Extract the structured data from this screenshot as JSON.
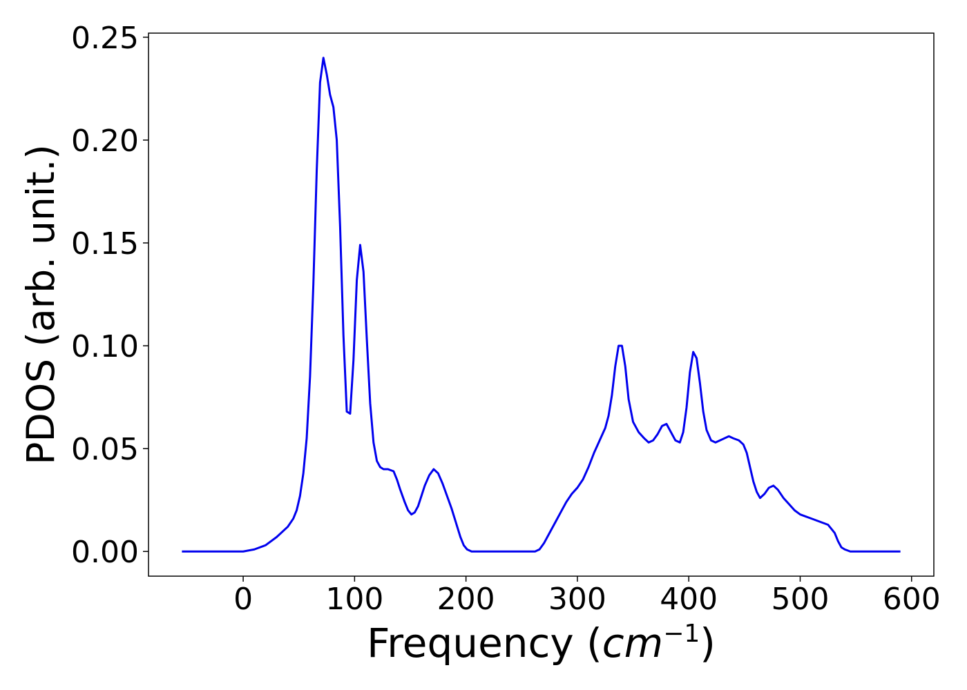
{
  "chart_data": {
    "type": "line",
    "xlabel_main": "Frequency (",
    "xlabel_unit": "cm",
    "xlabel_exp": "−1",
    "xlabel_close": ")",
    "ylabel": "PDOS (arb. unit.)",
    "xlim": [
      -85,
      620
    ],
    "ylim": [
      -0.012,
      0.252
    ],
    "grid": false,
    "xticks": [
      0,
      100,
      200,
      300,
      400,
      500,
      600
    ],
    "xtick_labels": [
      "0",
      "100",
      "200",
      "300",
      "400",
      "500",
      "600"
    ],
    "yticks": [
      0,
      0.05,
      0.1,
      0.15,
      0.2,
      0.25
    ],
    "ytick_labels": [
      "0.00",
      "0.05",
      "0.10",
      "0.15",
      "0.20",
      "0.25"
    ],
    "series": [
      {
        "color": "#0000ee",
        "x": [
          -55,
          -40,
          -20,
          0,
          10,
          20,
          30,
          40,
          45,
          48,
          51,
          54,
          57,
          60,
          63,
          66,
          69,
          72,
          75,
          78,
          81,
          84,
          87,
          90,
          93,
          96,
          99,
          102,
          105,
          108,
          111,
          114,
          117,
          120,
          123,
          126,
          130,
          135,
          138,
          141,
          145,
          148,
          151,
          154,
          157,
          160,
          163,
          167,
          171,
          175,
          179,
          183,
          187,
          191,
          195,
          198,
          201,
          205,
          210,
          220,
          240,
          255,
          262,
          266,
          270,
          275,
          280,
          285,
          290,
          295,
          300,
          305,
          310,
          315,
          320,
          325,
          328,
          331,
          334,
          337,
          340,
          343,
          346,
          350,
          355,
          360,
          364,
          368,
          372,
          376,
          380,
          384,
          388,
          392,
          395,
          398,
          401,
          404,
          407,
          410,
          413,
          416,
          420,
          424,
          428,
          432,
          436,
          440,
          445,
          449,
          452,
          455,
          458,
          461,
          464,
          468,
          472,
          476,
          480,
          485,
          490,
          495,
          500,
          505,
          510,
          515,
          520,
          525,
          528,
          531,
          534,
          537,
          540,
          545,
          560,
          590
        ],
        "y": [
          0,
          0,
          0,
          0,
          0.001,
          0.003,
          0.007,
          0.012,
          0.016,
          0.02,
          0.027,
          0.038,
          0.055,
          0.085,
          0.13,
          0.185,
          0.228,
          0.24,
          0.232,
          0.222,
          0.216,
          0.2,
          0.158,
          0.105,
          0.068,
          0.067,
          0.093,
          0.132,
          0.149,
          0.136,
          0.103,
          0.072,
          0.053,
          0.044,
          0.041,
          0.04,
          0.04,
          0.039,
          0.035,
          0.03,
          0.024,
          0.02,
          0.018,
          0.019,
          0.022,
          0.027,
          0.032,
          0.037,
          0.04,
          0.038,
          0.033,
          0.027,
          0.021,
          0.014,
          0.007,
          0.003,
          0.001,
          0,
          0,
          0,
          0,
          0,
          0,
          0.001,
          0.004,
          0.009,
          0.014,
          0.019,
          0.024,
          0.028,
          0.031,
          0.035,
          0.041,
          0.048,
          0.054,
          0.06,
          0.066,
          0.076,
          0.09,
          0.1,
          0.1,
          0.09,
          0.074,
          0.063,
          0.058,
          0.055,
          0.053,
          0.054,
          0.057,
          0.061,
          0.062,
          0.058,
          0.054,
          0.053,
          0.058,
          0.07,
          0.087,
          0.097,
          0.094,
          0.082,
          0.068,
          0.059,
          0.054,
          0.053,
          0.054,
          0.055,
          0.056,
          0.055,
          0.054,
          0.052,
          0.048,
          0.041,
          0.034,
          0.029,
          0.026,
          0.028,
          0.031,
          0.032,
          0.03,
          0.026,
          0.023,
          0.02,
          0.018,
          0.017,
          0.016,
          0.015,
          0.014,
          0.013,
          0.011,
          0.009,
          0.005,
          0.002,
          0.001,
          0,
          0,
          0
        ]
      }
    ]
  }
}
